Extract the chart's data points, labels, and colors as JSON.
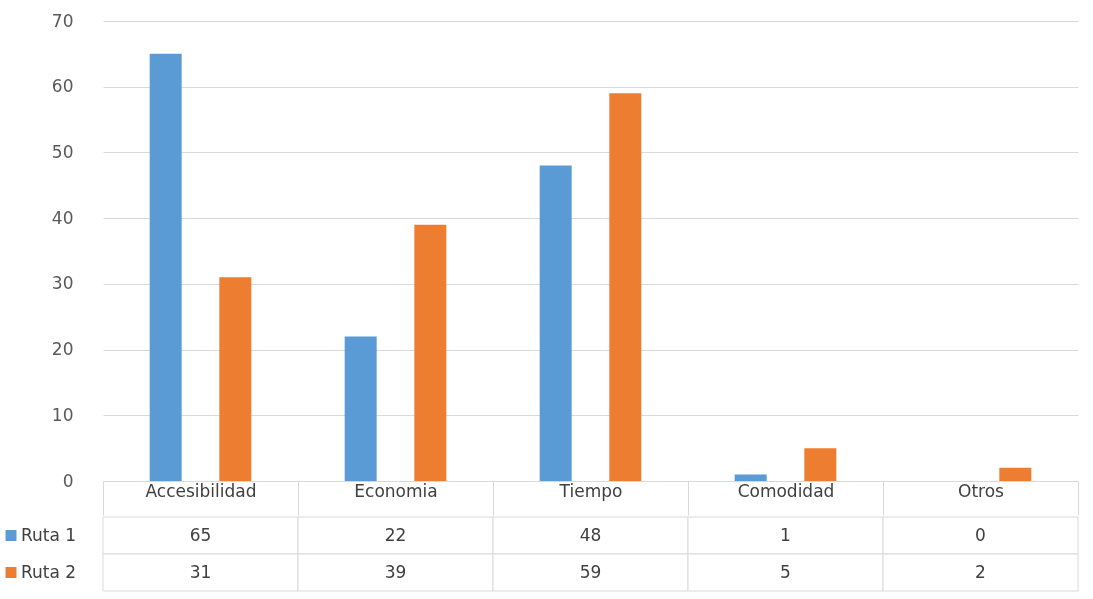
{
  "chart_data": {
    "type": "bar",
    "categories": [
      "Accesibilidad",
      "Economia",
      "Tiempo",
      "Comodidad",
      "Otros"
    ],
    "series": [
      {
        "name": "Ruta 1",
        "color": "#5b9bd5",
        "values": [
          65,
          22,
          48,
          1,
          0
        ]
      },
      {
        "name": "Ruta 2",
        "color": "#ed7d31",
        "values": [
          31,
          39,
          59,
          5,
          2
        ]
      }
    ],
    "ylim": [
      0,
      70
    ],
    "yticks": [
      0,
      10,
      20,
      30,
      40,
      50,
      60,
      70
    ],
    "grid": "y",
    "legend": "bottom",
    "data_labels": true
  }
}
